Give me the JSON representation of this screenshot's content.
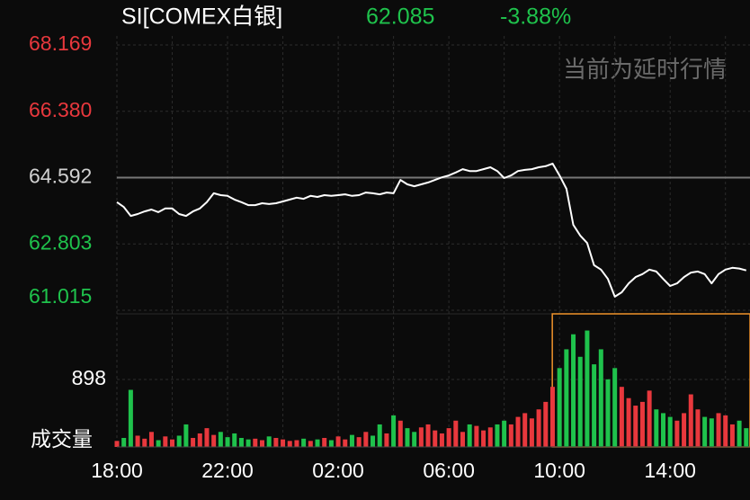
{
  "header": {
    "symbol": "SI[COMEX白银]",
    "price": "62.085",
    "change": "-3.88%"
  },
  "watermark": "当前为延时行情",
  "chart_data": {
    "type": "line",
    "x": [
      "18:00",
      "18:15",
      "18:30",
      "18:45",
      "19:00",
      "19:15",
      "19:30",
      "19:45",
      "20:00",
      "20:15",
      "20:30",
      "20:45",
      "21:00",
      "21:15",
      "21:30",
      "21:45",
      "22:00",
      "22:15",
      "22:30",
      "22:45",
      "23:00",
      "23:15",
      "23:30",
      "23:45",
      "00:00",
      "00:15",
      "00:30",
      "00:45",
      "01:00",
      "01:15",
      "01:30",
      "01:45",
      "02:00",
      "02:15",
      "02:30",
      "02:45",
      "03:00",
      "03:15",
      "03:30",
      "03:45",
      "04:00",
      "04:15",
      "04:30",
      "04:45",
      "05:00",
      "05:15",
      "05:30",
      "05:45",
      "06:00",
      "06:15",
      "06:30",
      "06:45",
      "07:00",
      "07:15",
      "07:30",
      "07:45",
      "08:00",
      "08:15",
      "08:30",
      "08:45",
      "09:00",
      "09:15",
      "09:30",
      "09:45",
      "10:00",
      "10:15",
      "10:30",
      "10:45",
      "11:00",
      "11:15",
      "11:30",
      "11:45",
      "12:00",
      "12:15",
      "12:30",
      "12:45",
      "13:00",
      "13:15",
      "13:30",
      "13:45",
      "14:00",
      "14:15",
      "14:30",
      "14:45",
      "15:00",
      "15:15",
      "15:30",
      "15:45",
      "16:00",
      "16:15",
      "16:30",
      "16:45"
    ],
    "series": [
      {
        "color": "#ffffff",
        "values": [
          63.93,
          63.8,
          63.56,
          63.61,
          63.68,
          63.73,
          63.66,
          63.76,
          63.76,
          63.61,
          63.56,
          63.68,
          63.76,
          63.93,
          64.17,
          64.12,
          64.1,
          64.0,
          63.93,
          63.85,
          63.85,
          63.9,
          63.88,
          63.9,
          63.95,
          64.0,
          64.05,
          64.02,
          64.1,
          64.07,
          64.12,
          64.1,
          64.12,
          64.14,
          64.1,
          64.12,
          64.19,
          64.17,
          64.14,
          64.19,
          64.17,
          64.53,
          64.41,
          64.36,
          64.41,
          64.46,
          64.53,
          64.6,
          64.65,
          64.73,
          64.82,
          64.77,
          64.77,
          64.82,
          64.87,
          64.77,
          64.58,
          64.65,
          64.77,
          64.8,
          64.82,
          64.87,
          64.9,
          64.97,
          64.65,
          64.29,
          63.32,
          63.03,
          62.83,
          62.23,
          62.11,
          61.86,
          61.38,
          61.5,
          61.74,
          61.91,
          61.99,
          62.11,
          62.06,
          61.86,
          61.67,
          61.74,
          61.91,
          62.03,
          62.06,
          61.99,
          61.74,
          61.99,
          62.11,
          62.16,
          62.14,
          62.09
        ]
      }
    ],
    "ylim": [
      61.015,
      68.169
    ],
    "yticks": [
      {
        "value": 68.169,
        "label": "68.169"
      },
      {
        "value": 66.38,
        "label": "66.380"
      },
      {
        "value": 64.592,
        "label": "64.592"
      },
      {
        "value": 62.803,
        "label": "62.803"
      },
      {
        "value": 61.015,
        "label": "61.015"
      }
    ],
    "ytick_colors": [
      "#e8383d",
      "#e8383d",
      "#d0d0d0",
      "#1fc24c",
      "#1fc24c"
    ],
    "xticks": [
      "18:00",
      "22:00",
      "02:00",
      "06:00",
      "10:00",
      "14:00"
    ],
    "volume": {
      "type": "bar",
      "title": "成交量",
      "up_color": "#e8383d",
      "down_color": "#1fc24c",
      "values": [
        80,
        120,
        760,
        150,
        110,
        200,
        90,
        140,
        100,
        150,
        300,
        120,
        180,
        250,
        160,
        200,
        130,
        180,
        120,
        100,
        110,
        90,
        140,
        120,
        100,
        80,
        90,
        110,
        80,
        100,
        120,
        90,
        140,
        100,
        160,
        130,
        200,
        150,
        300,
        180,
        420,
        350,
        250,
        200,
        260,
        300,
        220,
        180,
        250,
        350,
        200,
        300,
        280,
        220,
        260,
        300,
        350,
        300,
        400,
        450,
        380,
        500,
        600,
        800,
        1050,
        1300,
        1500,
        1200,
        1550,
        1100,
        1300,
        900,
        1050,
        800,
        650,
        550,
        600,
        750,
        500,
        450,
        400,
        350,
        450,
        700,
        500,
        400,
        380,
        450,
        420,
        300,
        350,
        250
      ],
      "ylim": [
        0,
        1760
      ],
      "yticks": [
        898
      ]
    }
  }
}
